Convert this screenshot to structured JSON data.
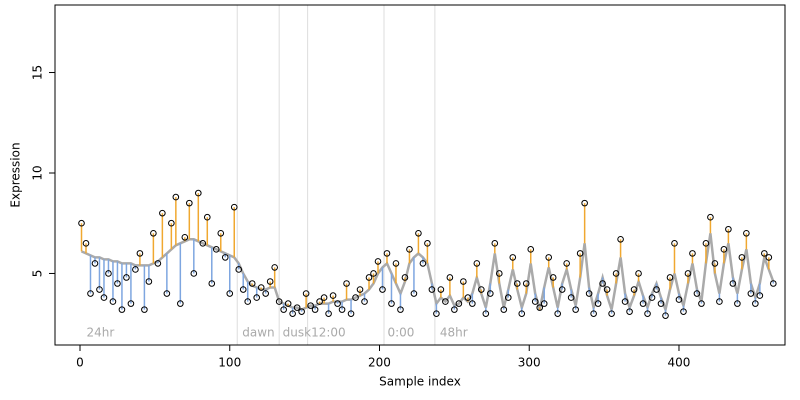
{
  "chart_data": {
    "type": "scatter",
    "xlabel": "Sample index",
    "ylabel": "Expression",
    "xlim": [
      -16.7,
      470.8
    ],
    "ylim": [
      1.44,
      18.36
    ],
    "xticks": [
      0,
      100,
      200,
      300,
      400
    ],
    "yticks": [
      5,
      10,
      15
    ],
    "point_color": "#000000",
    "line_color": "#aaaaaa",
    "above_color": "#f0a830",
    "below_color": "#7ea6e0",
    "vline_color": "#dddddd",
    "vlines": [
      105,
      133,
      152,
      203,
      237
    ],
    "annotations": [
      {
        "x": 3,
        "label": "24hr"
      },
      {
        "x": 107,
        "label": "dawn"
      },
      {
        "x": 134,
        "label": "dusk"
      },
      {
        "x": 153,
        "label": "12:00"
      },
      {
        "x": 204,
        "label": "0:00"
      },
      {
        "x": 239,
        "label": "48hr"
      }
    ],
    "x": [
      1,
      4,
      7,
      10,
      13,
      16,
      19,
      22,
      25,
      28,
      31,
      34,
      37,
      40,
      43,
      46,
      49,
      52,
      55,
      58,
      61,
      64,
      67,
      70,
      73,
      76,
      79,
      82,
      85,
      88,
      91,
      94,
      97,
      100,
      103,
      106,
      109,
      112,
      115,
      118,
      121,
      124,
      127,
      130,
      133,
      136,
      139,
      142,
      145,
      148,
      151,
      154,
      157,
      160,
      163,
      166,
      169,
      172,
      175,
      178,
      181,
      184,
      187,
      190,
      193,
      196,
      199,
      202,
      205,
      208,
      211,
      214,
      217,
      220,
      223,
      226,
      229,
      232,
      235,
      238,
      241,
      244,
      247,
      250,
      253,
      256,
      259,
      262,
      265,
      268,
      271,
      274,
      277,
      280,
      283,
      286,
      289,
      292,
      295,
      298,
      301,
      304,
      307,
      310,
      313,
      316,
      319,
      322,
      325,
      328,
      331,
      334,
      337,
      340,
      343,
      346,
      349,
      352,
      355,
      358,
      361,
      364,
      367,
      370,
      373,
      376,
      379,
      382,
      385,
      388,
      391,
      394,
      397,
      400,
      403,
      406,
      409,
      412,
      415,
      418,
      421,
      424,
      427,
      430,
      433,
      436,
      439,
      442,
      445,
      448,
      451,
      454,
      457,
      460,
      463
    ],
    "observed": [
      7.5,
      6.5,
      4.0,
      5.5,
      4.2,
      3.8,
      5.0,
      3.6,
      4.5,
      3.2,
      4.8,
      3.5,
      5.2,
      6.0,
      3.2,
      4.6,
      7.0,
      5.5,
      8.0,
      4.0,
      7.5,
      8.8,
      3.5,
      6.8,
      8.5,
      5.0,
      9.0,
      6.5,
      7.8,
      4.5,
      6.2,
      7.0,
      5.8,
      4.0,
      8.3,
      5.2,
      4.2,
      3.6,
      4.5,
      3.8,
      4.3,
      4.0,
      4.6,
      5.3,
      3.6,
      3.2,
      3.5,
      3.0,
      3.3,
      3.1,
      4.0,
      3.4,
      3.2,
      3.6,
      3.8,
      3.0,
      3.9,
      3.5,
      3.2,
      4.5,
      3.0,
      3.8,
      4.2,
      3.6,
      4.8,
      5.0,
      5.6,
      4.2,
      6.0,
      3.5,
      5.5,
      3.2,
      4.8,
      6.2,
      4.0,
      7.0,
      5.5,
      6.5,
      4.2,
      3.0,
      4.2,
      3.6,
      4.8,
      3.2,
      3.5,
      4.6,
      3.8,
      3.5,
      5.5,
      4.2,
      3.0,
      4.0,
      6.5,
      5.0,
      3.2,
      3.8,
      5.8,
      4.5,
      3.0,
      4.5,
      6.2,
      3.6,
      3.3,
      3.5,
      5.8,
      4.8,
      3.0,
      4.2,
      5.5,
      3.8,
      3.2,
      6.0,
      8.5,
      4.0,
      3.0,
      3.5,
      4.5,
      4.2,
      3.0,
      5.0,
      6.7,
      3.6,
      3.1,
      4.2,
      5.0,
      3.5,
      3.0,
      3.8,
      4.2,
      3.5,
      2.9,
      4.8,
      6.5,
      3.7,
      3.1,
      5.0,
      6.0,
      4.0,
      3.5,
      6.5,
      7.8,
      5.5,
      3.6,
      6.2,
      7.2,
      4.5,
      3.5,
      5.8,
      7.0,
      4.0,
      3.5,
      3.9,
      6.0,
      5.8,
      4.5
    ],
    "fitted": [
      6.1,
      6.0,
      5.9,
      5.8,
      5.8,
      5.7,
      5.7,
      5.6,
      5.6,
      5.5,
      5.5,
      5.5,
      5.4,
      5.4,
      5.4,
      5.4,
      5.5,
      5.6,
      5.8,
      6.0,
      6.2,
      6.4,
      6.5,
      6.6,
      6.7,
      6.7,
      6.6,
      6.5,
      6.4,
      6.3,
      6.2,
      6.1,
      6.0,
      5.9,
      5.8,
      5.5,
      5.0,
      4.6,
      4.4,
      4.3,
      4.2,
      4.2,
      4.3,
      4.3,
      3.6,
      3.5,
      3.4,
      3.3,
      3.3,
      3.2,
      3.3,
      3.4,
      3.4,
      3.5,
      3.5,
      3.5,
      3.6,
      3.6,
      3.6,
      3.7,
      3.7,
      3.8,
      3.9,
      4.0,
      4.2,
      4.5,
      5.0,
      5.3,
      5.5,
      5.0,
      4.5,
      4.0,
      4.6,
      5.5,
      5.8,
      6.0,
      5.8,
      5.5,
      4.5,
      3.5,
      3.8,
      3.6,
      3.9,
      3.4,
      3.5,
      3.8,
      3.6,
      4.0,
      4.8,
      4.0,
      3.3,
      4.5,
      6.0,
      4.5,
      3.3,
      4.2,
      5.2,
      4.2,
      3.3,
      4.0,
      5.5,
      4.0,
      3.2,
      4.3,
      5.3,
      4.3,
      3.3,
      4.5,
      5.2,
      4.2,
      3.4,
      4.8,
      6.5,
      4.3,
      3.3,
      4.0,
      4.8,
      3.9,
      3.2,
      4.5,
      5.8,
      4.0,
      3.3,
      3.9,
      4.6,
      3.9,
      3.3,
      4.0,
      4.5,
      3.8,
      3.2,
      4.2,
      5.0,
      4.0,
      3.4,
      4.5,
      5.5,
      4.2,
      3.6,
      5.5,
      7.0,
      5.0,
      4.0,
      5.5,
      6.5,
      4.8,
      4.0,
      5.2,
      6.2,
      4.5,
      3.8,
      4.5,
      5.8,
      5.2,
      4.6
    ]
  }
}
